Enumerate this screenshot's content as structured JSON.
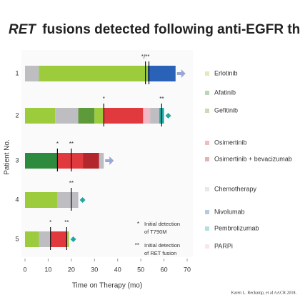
{
  "chart_data": {
    "type": "swimmer",
    "title_em": "RET",
    "title": "fusions detected following anti-EGFR therapies",
    "x_label": "Time on Therapy (mo)",
    "y_label": "Patient No.",
    "xlim": [
      0,
      70
    ],
    "xticks": [
      0,
      10,
      20,
      30,
      40,
      50,
      60,
      70
    ],
    "therapies": [
      {
        "name": "Erlotinib",
        "color": "#9ccc3c"
      },
      {
        "name": "Afatinib",
        "color": "#2e8b3e"
      },
      {
        "name": "Gefitinib",
        "color": "#5e9a3a"
      },
      {
        "name": "Osimertinib",
        "color": "#e0393e"
      },
      {
        "name": "Osimertinib + bevacizumab",
        "color": "#b3262c"
      },
      {
        "name": "Chemotherapy",
        "color": "#bdbdc2"
      },
      {
        "name": "Nivolumab",
        "color": "#2a62b8"
      },
      {
        "name": "Pembrolizumab",
        "color": "#22a7a0"
      },
      {
        "name": "PARPi",
        "color": "#f2b8c4"
      }
    ],
    "patients": [
      {
        "label": "1",
        "end_marker": "arrow",
        "segments": [
          {
            "therapy": 5,
            "start": 0,
            "end": 6
          },
          {
            "therapy": 0,
            "start": 6,
            "end": 53
          },
          {
            "therapy": 6,
            "start": 53,
            "end": 65
          }
        ],
        "markers": [
          {
            "x": 52,
            "label": "*/**"
          },
          {
            "x": 53.5
          }
        ]
      },
      {
        "label": "2",
        "end_marker": "diamond",
        "segments": [
          {
            "therapy": 0,
            "start": 0,
            "end": 13
          },
          {
            "therapy": 5,
            "start": 13,
            "end": 23
          },
          {
            "therapy": 2,
            "start": 23,
            "end": 30
          },
          {
            "therapy": 0,
            "start": 30,
            "end": 34
          },
          {
            "therapy": 3,
            "start": 34,
            "end": 51
          },
          {
            "therapy": 8,
            "start": 51,
            "end": 54
          },
          {
            "therapy": 5,
            "start": 54,
            "end": 58
          },
          {
            "therapy": 7,
            "start": 58,
            "end": 60
          }
        ],
        "markers": [
          {
            "x": 34,
            "label": "*"
          },
          {
            "x": 59,
            "label": "**"
          }
        ]
      },
      {
        "label": "3",
        "end_marker": "arrow",
        "segments": [
          {
            "therapy": 1,
            "start": 0,
            "end": 14
          },
          {
            "therapy": 3,
            "start": 14,
            "end": 25
          },
          {
            "therapy": 4,
            "start": 25,
            "end": 32
          },
          {
            "therapy": 5,
            "start": 32,
            "end": 34
          }
        ],
        "markers": [
          {
            "x": 14,
            "label": "*"
          },
          {
            "x": 20,
            "label": "**"
          }
        ]
      },
      {
        "label": "4",
        "end_marker": "diamond",
        "segments": [
          {
            "therapy": 0,
            "start": 0,
            "end": 14
          },
          {
            "therapy": 5,
            "start": 14,
            "end": 23
          }
        ],
        "markers": [
          {
            "x": 20,
            "label": "**"
          }
        ]
      },
      {
        "label": "5",
        "end_marker": "diamond",
        "segments": [
          {
            "therapy": 0,
            "start": 0,
            "end": 6
          },
          {
            "therapy": 5,
            "start": 6,
            "end": 11
          },
          {
            "therapy": 3,
            "start": 11,
            "end": 18
          },
          {
            "therapy": 0,
            "start": 18,
            "end": 19
          }
        ],
        "markers": [
          {
            "x": 11,
            "label": "*"
          },
          {
            "x": 18,
            "label": "**"
          }
        ]
      }
    ],
    "key": [
      {
        "symbol": "*",
        "lines": [
          "Initial detection",
          "of T790M"
        ]
      },
      {
        "symbol": "**",
        "lines": [
          "Initial detection",
          "of RET fusion"
        ]
      }
    ],
    "citation": "Karen L. Reckamp, et al AACR 2018."
  }
}
